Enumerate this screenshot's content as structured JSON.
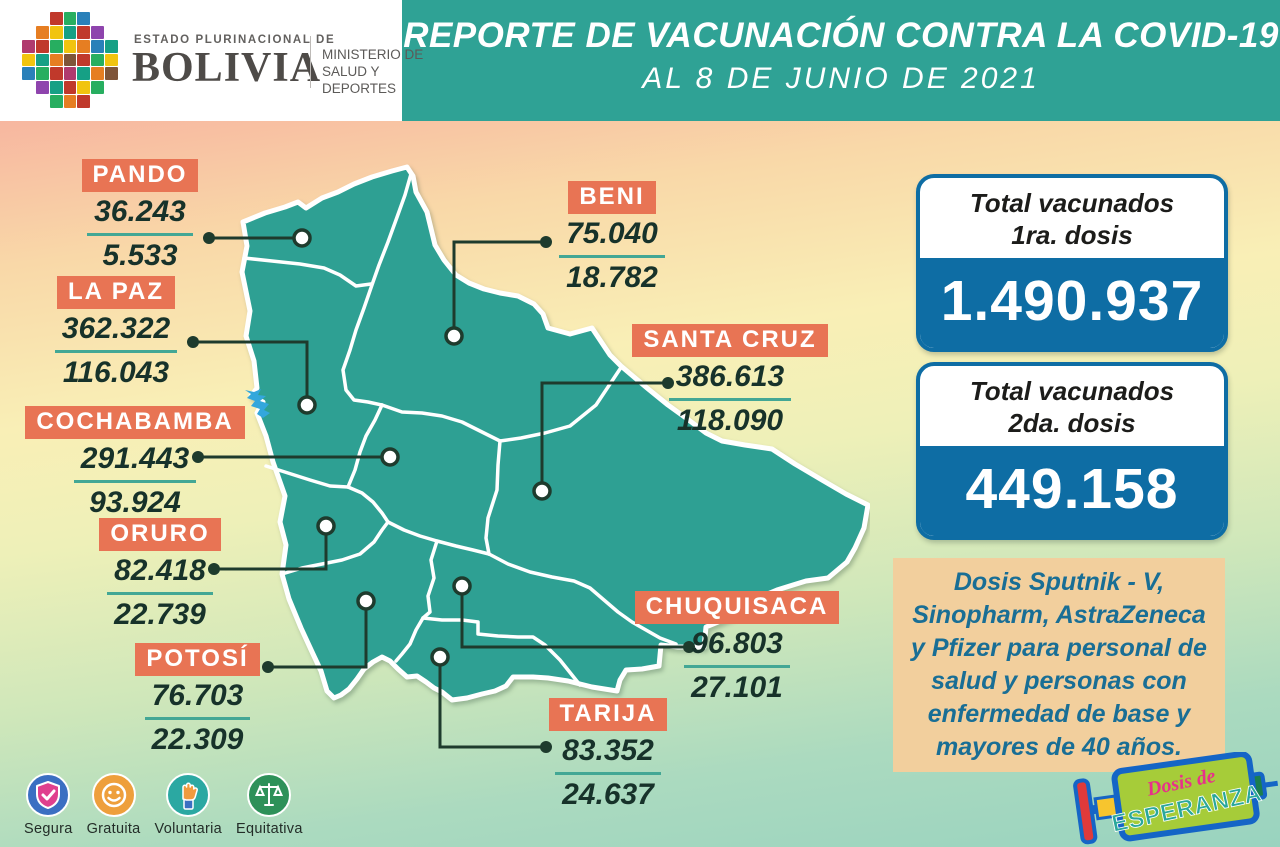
{
  "header": {
    "logo_estado": "ESTADO PLURINACIONAL DE",
    "logo_bolivia": "BOLIVIA",
    "logo_ministerio": "MINISTERIO DE SALUD Y DEPORTES",
    "title_line1": "REPORTE DE VACUNACIÓN CONTRA LA COVID-19",
    "title_line2": "AL 8 DE JUNIO DE 2021"
  },
  "departments": [
    {
      "name": "PANDO",
      "dose1": "36.243",
      "dose2": "5.533"
    },
    {
      "name": "LA PAZ",
      "dose1": "362.322",
      "dose2": "116.043"
    },
    {
      "name": "COCHABAMBA",
      "dose1": "291.443",
      "dose2": "93.924"
    },
    {
      "name": "ORURO",
      "dose1": "82.418",
      "dose2": "22.739"
    },
    {
      "name": "POTOSÍ",
      "dose1": "76.703",
      "dose2": "22.309"
    },
    {
      "name": "BENI",
      "dose1": "75.040",
      "dose2": "18.782"
    },
    {
      "name": "SANTA CRUZ",
      "dose1": "386.613",
      "dose2": "118.090"
    },
    {
      "name": "CHUQUISACA",
      "dose1": "96.803",
      "dose2": "27.101"
    },
    {
      "name": "TARIJA",
      "dose1": "83.352",
      "dose2": "24.637"
    }
  ],
  "totals": [
    {
      "label_line1": "Total vacunados",
      "label_line2": "1ra. dosis",
      "value": "1.490.937"
    },
    {
      "label_line1": "Total vacunados",
      "label_line2": "2da. dosis",
      "value": "449.158"
    }
  ],
  "note": {
    "lines": [
      "Dosis Sputnik - V,",
      "Sinopharm, AstraZeneca",
      "y Pfizer para personal de",
      "salud y personas con",
      "enfermedad de base y",
      "mayores de 40 años."
    ]
  },
  "principles": [
    {
      "label": "Segura",
      "icon": "shield-check-icon"
    },
    {
      "label": "Gratuita",
      "icon": "smiley-icon"
    },
    {
      "label": "Voluntaria",
      "icon": "raised-hand-icon"
    },
    {
      "label": "Equitativa",
      "icon": "balance-scale-icon"
    }
  ],
  "esperanza": {
    "line1": "Dosis de",
    "line2": "ESPERANZA"
  },
  "colors": {
    "header_teal": "#2fa295",
    "map_teal": "#2ea093",
    "label_orange": "#e87454",
    "number_dark": "#17322a",
    "underline_teal": "#43a795",
    "card_blue": "#0e6da4",
    "note_tan": "#f2cf9d",
    "note_text_blue": "#196e95",
    "connector_dark": "#1e3b2d",
    "lake_blue": "#33a7dc"
  },
  "chart_data": {
    "type": "table",
    "title": "REPORTE DE VACUNACIÓN CONTRA LA COVID-19 AL 8 DE JUNIO DE 2021",
    "categories": [
      "PANDO",
      "LA PAZ",
      "COCHABAMBA",
      "ORURO",
      "POTOSÍ",
      "BENI",
      "SANTA CRUZ",
      "CHUQUISACA",
      "TARIJA"
    ],
    "series": [
      {
        "name": "1ra. dosis",
        "values": [
          36243,
          362322,
          291443,
          82418,
          76703,
          75040,
          386613,
          96803,
          83352
        ]
      },
      {
        "name": "2da. dosis",
        "values": [
          5533,
          116043,
          93924,
          22739,
          22309,
          18782,
          118090,
          27101,
          24637
        ]
      }
    ],
    "totals": {
      "primera_dosis": 1490937,
      "segunda_dosis": 449158
    }
  }
}
